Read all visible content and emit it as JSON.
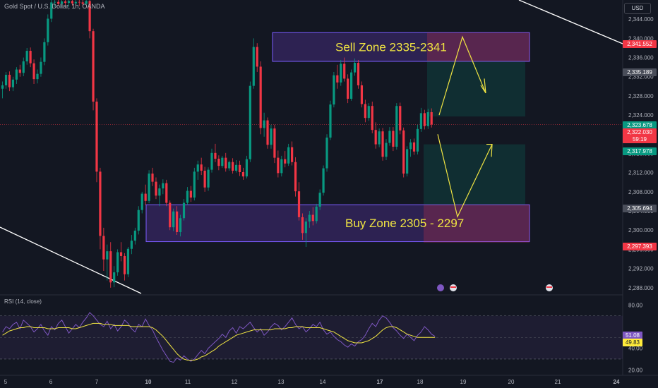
{
  "header": {
    "symbol": "Gold Spot / U.S. Dollar, 1h, OANDA",
    "currency": "USD"
  },
  "rsi_panel": {
    "title": "RSI (14, close)"
  },
  "price_tags": [
    {
      "value": "2,341.552",
      "bg": "#f23645",
      "fg": "#ffffff"
    },
    {
      "value": "2,335.189",
      "bg": "#4a4e5a",
      "fg": "#ffffff"
    },
    {
      "value": "2,323.678",
      "bg": "#089981",
      "fg": "#ffffff"
    },
    {
      "value": "2,322.030",
      "bg": "#f23645",
      "fg": "#ffffff"
    },
    {
      "value": "59:19",
      "bg": "#f23645",
      "fg": "#ffffff"
    },
    {
      "value": "2,317.978",
      "bg": "#089981",
      "fg": "#ffffff"
    },
    {
      "value": "2,305.694",
      "bg": "#4a4e5a",
      "fg": "#ffffff"
    },
    {
      "value": "2,297.393",
      "bg": "#f23645",
      "fg": "#ffffff"
    }
  ],
  "rsi_tags": [
    {
      "value": "51.08",
      "bg": "#7e57c2",
      "fg": "#ffffff"
    },
    {
      "value": "49.83",
      "bg": "#ffeb3b",
      "fg": "#131722"
    }
  ],
  "chart_data": {
    "type": "candlestick",
    "instrument": "Gold Spot / U.S. Dollar",
    "timeframe": "1h",
    "y_ticks": [
      "2,344.000",
      "2,340.000",
      "2,336.000",
      "2,332.000",
      "2,328.000",
      "2,324.000",
      "2,320.000",
      "2,316.000",
      "2,312.000",
      "2,308.000",
      "2,304.000",
      "2,300.000",
      "2,296.000",
      "2,292.000",
      "2,288.000"
    ],
    "ylim": [
      2286.5,
      2348
    ],
    "x_ticks": [
      "5",
      "6",
      "7",
      "10",
      "11",
      "12",
      "13",
      "14",
      "17",
      "18",
      "19",
      "20",
      "21",
      "24"
    ],
    "rsi": {
      "ticks": [
        "80.00",
        "40.00",
        "20.00"
      ],
      "ylim": [
        15,
        88
      ],
      "upper_band": 70,
      "lower_band": 30,
      "last_rsi": 51.08,
      "last_ma": 49.83,
      "rsi_values": [
        55,
        60,
        58,
        62,
        64,
        58,
        66,
        63,
        60,
        55,
        58,
        62,
        56,
        52,
        60,
        57,
        63,
        66,
        60,
        54,
        58,
        62,
        59,
        64,
        68,
        73,
        70,
        66,
        62,
        60,
        65,
        58,
        62,
        56,
        60,
        66,
        63,
        58,
        55,
        62,
        60,
        67,
        61,
        57,
        50,
        44,
        38,
        33,
        28,
        27,
        31,
        29,
        33,
        30,
        28,
        30,
        34,
        38,
        35,
        40,
        43,
        46,
        49,
        53,
        50,
        56,
        59,
        54,
        60,
        58,
        61,
        64,
        59,
        55,
        58,
        52,
        55,
        60,
        63,
        61,
        57,
        60,
        64,
        68,
        62,
        58,
        60,
        55,
        58,
        62,
        60,
        64,
        57,
        53,
        55,
        51,
        48,
        46,
        43,
        41,
        44,
        42,
        46,
        48,
        52,
        58,
        63,
        60,
        66,
        70,
        68,
        64,
        59,
        56,
        52,
        49,
        53,
        50,
        47,
        52,
        55,
        60,
        57,
        53,
        51
      ],
      "ma_values": [
        52,
        54,
        56,
        57,
        58,
        59,
        59,
        60,
        60,
        59,
        59,
        59,
        59,
        58,
        58,
        58,
        59,
        59,
        59,
        59,
        58,
        58,
        59,
        60,
        61,
        62,
        63,
        63,
        63,
        62,
        62,
        62,
        61,
        61,
        61,
        61,
        61,
        60,
        60,
        60,
        60,
        60,
        60,
        59,
        57,
        54,
        51,
        47,
        43,
        39,
        35,
        32,
        30,
        29,
        29,
        29,
        30,
        32,
        33,
        35,
        37,
        39,
        42,
        44,
        46,
        48,
        50,
        52,
        53,
        54,
        55,
        56,
        57,
        57,
        57,
        57,
        57,
        57,
        58,
        58,
        58,
        58,
        59,
        59,
        60,
        60,
        60,
        59,
        59,
        59,
        59,
        59,
        58,
        57,
        56,
        55,
        53,
        51,
        49,
        47,
        46,
        45,
        45,
        45,
        46,
        47,
        49,
        51,
        54,
        57,
        59,
        60,
        60,
        59,
        57,
        55,
        53,
        52,
        51,
        50,
        50,
        50,
        50,
        50,
        50
      ]
    },
    "candles": [
      [
        2329.5,
        2331,
        2327.5,
        2330.2
      ],
      [
        2330.2,
        2333,
        2329.5,
        2332.4
      ],
      [
        2332.4,
        2333.1,
        2329,
        2329.8
      ],
      [
        2329.8,
        2332,
        2329,
        2331.4
      ],
      [
        2331.4,
        2334,
        2330.5,
        2333.5
      ],
      [
        2333.5,
        2334.5,
        2332,
        2332.8
      ],
      [
        2332.8,
        2336,
        2332.1,
        2335.2
      ],
      [
        2335.2,
        2338,
        2334.5,
        2337.4
      ],
      [
        2337.4,
        2338.1,
        2334,
        2334.8
      ],
      [
        2334.8,
        2335.6,
        2330.5,
        2331.5
      ],
      [
        2331.5,
        2333.5,
        2330.6,
        2332.6
      ],
      [
        2332.6,
        2336,
        2332,
        2335.1
      ],
      [
        2335.1,
        2340,
        2334.4,
        2339.2
      ],
      [
        2339.2,
        2345,
        2338.5,
        2344.1
      ],
      [
        2344.1,
        2348,
        2343.4,
        2347.5
      ],
      [
        2347.5,
        2348,
        2346.5,
        2347.6
      ],
      [
        2347.6,
        2348,
        2346.8,
        2347.2
      ],
      [
        2347.2,
        2348,
        2346.5,
        2347.7
      ],
      [
        2347.7,
        2348,
        2346.8,
        2347.4
      ],
      [
        2347.4,
        2348,
        2346.5,
        2347.8
      ],
      [
        2347.8,
        2348,
        2346.8,
        2347.3
      ],
      [
        2347.3,
        2348,
        2346.9,
        2347.6
      ],
      [
        2347.6,
        2348,
        2346.7,
        2347.5
      ],
      [
        2347.5,
        2348,
        2346.6,
        2347.2
      ],
      [
        2347.2,
        2348,
        2346.8,
        2347.8
      ],
      [
        2347.8,
        2348,
        2340,
        2341.5
      ],
      [
        2341.5,
        2342,
        2325,
        2326.8
      ],
      [
        2326.8,
        2327.5,
        2310,
        2312.2
      ],
      [
        2312.2,
        2313,
        2296,
        2298.8
      ],
      [
        2298.8,
        2300.5,
        2291.5,
        2293.9
      ],
      [
        2293.9,
        2297,
        2289.5,
        2295.6
      ],
      [
        2295.6,
        2297.5,
        2288,
        2289.1
      ],
      [
        2289.1,
        2292.5,
        2288.1,
        2291.2
      ],
      [
        2291.2,
        2296,
        2290.5,
        2295.4
      ],
      [
        2295.4,
        2297.5,
        2293.5,
        2294.6
      ],
      [
        2294.6,
        2295.2,
        2289.5,
        2290.8
      ],
      [
        2290.8,
        2296.5,
        2290.2,
        2296.1
      ],
      [
        2296.1,
        2299,
        2295,
        2297.8
      ],
      [
        2297.8,
        2300.5,
        2297,
        2299.9
      ],
      [
        2299.9,
        2305,
        2299.1,
        2304.2
      ],
      [
        2304.2,
        2308,
        2303.5,
        2307.6
      ],
      [
        2307.6,
        2309.5,
        2305.2,
        2306.1
      ],
      [
        2306.1,
        2312.5,
        2305.6,
        2311.8
      ],
      [
        2311.8,
        2313,
        2309.2,
        2310.1
      ],
      [
        2310.1,
        2311,
        2306.5,
        2307.2
      ],
      [
        2307.2,
        2309.5,
        2305,
        2308.7
      ],
      [
        2308.7,
        2310.6,
        2307.5,
        2309.8
      ],
      [
        2309.8,
        2310.5,
        2305,
        2305.7
      ],
      [
        2305.7,
        2306.2,
        2300,
        2300.6
      ],
      [
        2300.6,
        2304.5,
        2299.8,
        2303.9
      ],
      [
        2303.9,
        2305,
        2299,
        2299.6
      ],
      [
        2299.6,
        2303.2,
        2298.7,
        2302.5
      ],
      [
        2302.5,
        2306.5,
        2302,
        2305.7
      ],
      [
        2305.7,
        2309,
        2305.2,
        2308.2
      ],
      [
        2308.2,
        2309.2,
        2305.9,
        2306.8
      ],
      [
        2306.8,
        2313,
        2306.2,
        2312.2
      ],
      [
        2312.2,
        2314.5,
        2310.5,
        2313.7
      ],
      [
        2313.7,
        2315.1,
        2311.5,
        2312.4
      ],
      [
        2312.4,
        2313.2,
        2308,
        2308.9
      ],
      [
        2308.9,
        2313.1,
        2308.2,
        2312.6
      ],
      [
        2312.6,
        2317,
        2312,
        2316.1
      ],
      [
        2316.1,
        2318,
        2314.2,
        2314.9
      ],
      [
        2314.9,
        2315.6,
        2312.5,
        2313.4
      ],
      [
        2313.4,
        2315.5,
        2313,
        2315.1
      ],
      [
        2315.1,
        2316.1,
        2312.2,
        2312.9
      ],
      [
        2312.9,
        2314.5,
        2312.4,
        2314.2
      ],
      [
        2314.2,
        2315,
        2311.8,
        2312.4
      ],
      [
        2312.4,
        2314.6,
        2312,
        2313.6
      ],
      [
        2313.6,
        2314.5,
        2311.3,
        2312.1
      ],
      [
        2312.1,
        2313,
        2310.5,
        2311.2
      ],
      [
        2311.2,
        2315.5,
        2310.8,
        2314.8
      ],
      [
        2314.8,
        2331,
        2314.2,
        2330.1
      ],
      [
        2330.1,
        2340,
        2329.5,
        2338.2
      ],
      [
        2338.2,
        2339,
        2333,
        2334.1
      ],
      [
        2334.1,
        2335.2,
        2320,
        2321.3
      ],
      [
        2321.3,
        2324.5,
        2319.5,
        2322.9
      ],
      [
        2322.9,
        2323.5,
        2317,
        2317.8
      ],
      [
        2317.8,
        2322,
        2317,
        2321.2
      ],
      [
        2321.2,
        2322,
        2314,
        2315.1
      ],
      [
        2315.1,
        2316.6,
        2311,
        2311.9
      ],
      [
        2311.9,
        2315.5,
        2311.2,
        2314.8
      ],
      [
        2314.8,
        2316.5,
        2313.1,
        2313.9
      ],
      [
        2313.9,
        2318,
        2313.4,
        2317.3
      ],
      [
        2317.3,
        2318.5,
        2313.5,
        2314.2
      ],
      [
        2314.2,
        2315.2,
        2307,
        2308.1
      ],
      [
        2308.1,
        2310,
        2302,
        2302.7
      ],
      [
        2302.7,
        2303.5,
        2298,
        2299.4
      ],
      [
        2299.4,
        2302.5,
        2296.5,
        2301.8
      ],
      [
        2301.8,
        2304,
        2300.5,
        2303.2
      ],
      [
        2303.2,
        2304.8,
        2301,
        2301.9
      ],
      [
        2301.9,
        2305.5,
        2301.4,
        2304.9
      ],
      [
        2304.9,
        2308.5,
        2304.2,
        2307.8
      ],
      [
        2307.8,
        2313.5,
        2307.2,
        2312.9
      ],
      [
        2312.9,
        2320,
        2312.2,
        2319.3
      ],
      [
        2319.3,
        2327,
        2318.8,
        2326.2
      ],
      [
        2326.2,
        2333,
        2325.6,
        2332.3
      ],
      [
        2332.3,
        2334.5,
        2329.5,
        2330.8
      ],
      [
        2330.8,
        2335.5,
        2330.1,
        2334.7
      ],
      [
        2334.7,
        2336,
        2331,
        2331.6
      ],
      [
        2331.6,
        2332.5,
        2326.5,
        2327.4
      ],
      [
        2327.4,
        2333.5,
        2327,
        2332.9
      ],
      [
        2332.9,
        2335.8,
        2332.2,
        2334.9
      ],
      [
        2334.9,
        2335.5,
        2329.5,
        2330.2
      ],
      [
        2330.2,
        2331,
        2325.6,
        2326.3
      ],
      [
        2326.3,
        2327.2,
        2322.5,
        2323.4
      ],
      [
        2323.4,
        2326.5,
        2322.8,
        2325.9
      ],
      [
        2325.9,
        2326.8,
        2320.2,
        2320.9
      ],
      [
        2320.9,
        2322.5,
        2317,
        2317.9
      ],
      [
        2317.9,
        2321.2,
        2317.3,
        2320.6
      ],
      [
        2320.6,
        2321.3,
        2314.5,
        2315.3
      ],
      [
        2315.3,
        2319,
        2314.6,
        2318.2
      ],
      [
        2318.2,
        2321.5,
        2317.6,
        2320.7
      ],
      [
        2320.7,
        2321.5,
        2316.5,
        2317.4
      ],
      [
        2317.4,
        2326.5,
        2316.8,
        2325.9
      ],
      [
        2325.9,
        2326.6,
        2320,
        2320.8
      ],
      [
        2320.8,
        2321.4,
        2311,
        2311.8
      ],
      [
        2311.8,
        2317.5,
        2311.2,
        2316.9
      ],
      [
        2316.9,
        2319,
        2315.3,
        2318.3
      ],
      [
        2318.3,
        2319.1,
        2315.7,
        2316.4
      ],
      [
        2316.4,
        2322,
        2315.8,
        2321.1
      ],
      [
        2321.1,
        2325.5,
        2320.5,
        2324.4
      ],
      [
        2324.4,
        2325.1,
        2321,
        2321.7
      ],
      [
        2321.7,
        2325.3,
        2321.1,
        2324.6
      ],
      [
        2324.6,
        2325.4,
        2321.4,
        2322.03
      ]
    ]
  },
  "annotations": {
    "sell_zone_label": "Sell Zone 2335-2341",
    "buy_zone_label": "Buy Zone 2305 - 2297"
  }
}
